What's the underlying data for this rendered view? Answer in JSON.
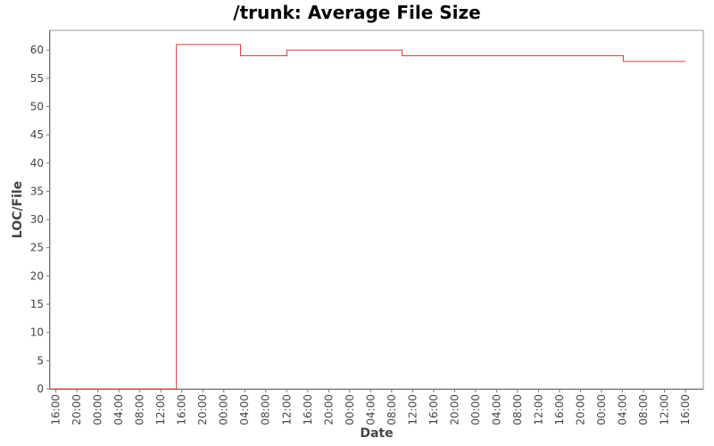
{
  "chart_data": {
    "type": "line",
    "title": "/trunk: Average File Size",
    "xlabel": "Date",
    "ylabel": "LOC/File",
    "ylim": [
      0,
      63.5
    ],
    "yticks": [
      0,
      5,
      10,
      15,
      20,
      25,
      30,
      35,
      40,
      45,
      50,
      55,
      60
    ],
    "xlim": [
      "2009-05-17T14:52",
      "2009-05-22T19:25"
    ],
    "xticks": [
      "2009-05-17T16:00",
      "2009-05-17T20:00",
      "2009-05-18T00:00",
      "2009-05-18T04:00",
      "2009-05-18T08:00",
      "2009-05-18T12:00",
      "2009-05-18T16:00",
      "2009-05-18T20:00",
      "2009-05-19T00:00",
      "2009-05-19T04:00",
      "2009-05-19T08:00",
      "2009-05-19T12:00",
      "2009-05-19T16:00",
      "2009-05-19T20:00",
      "2009-05-20T00:00",
      "2009-05-20T04:00",
      "2009-05-20T08:00",
      "2009-05-20T12:00",
      "2009-05-20T16:00",
      "2009-05-20T20:00",
      "2009-05-21T00:00",
      "2009-05-21T04:00",
      "2009-05-21T08:00",
      "2009-05-21T12:00",
      "2009-05-21T16:00",
      "2009-05-21T20:00",
      "2009-05-22T00:00",
      "2009-05-22T04:00",
      "2009-05-22T08:00",
      "2009-05-22T12:00",
      "2009-05-22T16:00"
    ],
    "xtick_labels": [
      "16:00",
      "20:00",
      "00:00",
      "04:00",
      "08:00",
      "12:00",
      "16:00",
      "20:00",
      "00:00",
      "04:00",
      "08:00",
      "12:00",
      "16:00",
      "20:00",
      "00:00",
      "04:00",
      "08:00",
      "12:00",
      "16:00",
      "20:00",
      "00:00",
      "04:00",
      "08:00",
      "12:00",
      "16:00",
      "20:00",
      "00:00",
      "04:00",
      "08:00",
      "12:00",
      "16:00"
    ],
    "step": true,
    "grid": false,
    "series": [
      {
        "color": "#e03a3a",
        "points": [
          {
            "x": "2009-05-17T15:00",
            "y": 0
          },
          {
            "x": "2009-05-18T14:58",
            "y": 61
          },
          {
            "x": "2009-05-19T03:12",
            "y": 59
          },
          {
            "x": "2009-05-19T12:02",
            "y": 60
          },
          {
            "x": "2009-05-20T10:00",
            "y": 59
          },
          {
            "x": "2009-05-22T04:10",
            "y": 58
          },
          {
            "x": "2009-05-22T16:00",
            "y": 58
          }
        ]
      }
    ],
    "plot_background": "#ffffff",
    "axis_color": "#777777"
  }
}
